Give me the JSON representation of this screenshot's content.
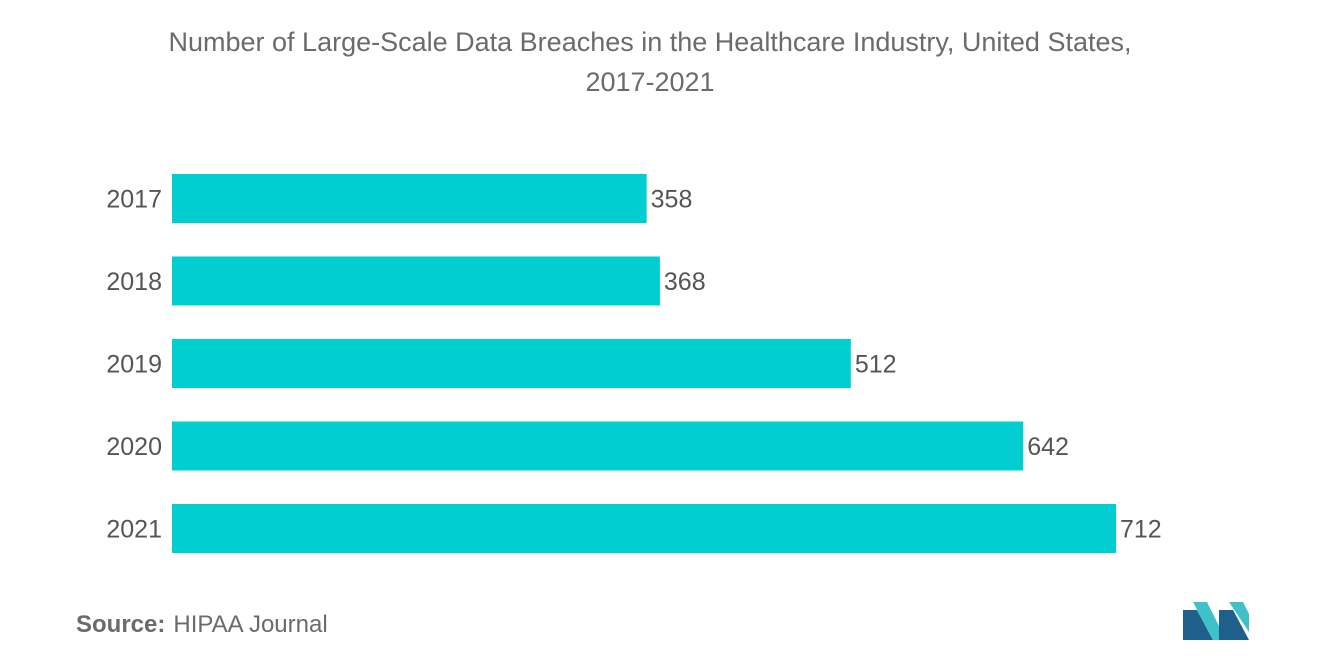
{
  "title_line1": "Number of Large-Scale Data Breaches in the Healthcare Industry, United States,",
  "title_line2": "2017-2021",
  "source_label": "Source:",
  "source_value": "HIPAA Journal",
  "colors": {
    "bar": "#00ced1",
    "text": "#555555",
    "logo_dark": "#1f5f8b",
    "logo_light": "#3fc1c9"
  },
  "chart_data": {
    "type": "bar",
    "orientation": "horizontal",
    "categories": [
      "2017",
      "2018",
      "2019",
      "2020",
      "2021"
    ],
    "values": [
      358,
      368,
      512,
      642,
      712
    ],
    "title": "Number of Large-Scale Data Breaches in the Healthcare Industry, United States, 2017-2021",
    "xlabel": "",
    "ylabel": "",
    "xlim": [
      0,
      712
    ],
    "grid": false,
    "legend": "none"
  }
}
